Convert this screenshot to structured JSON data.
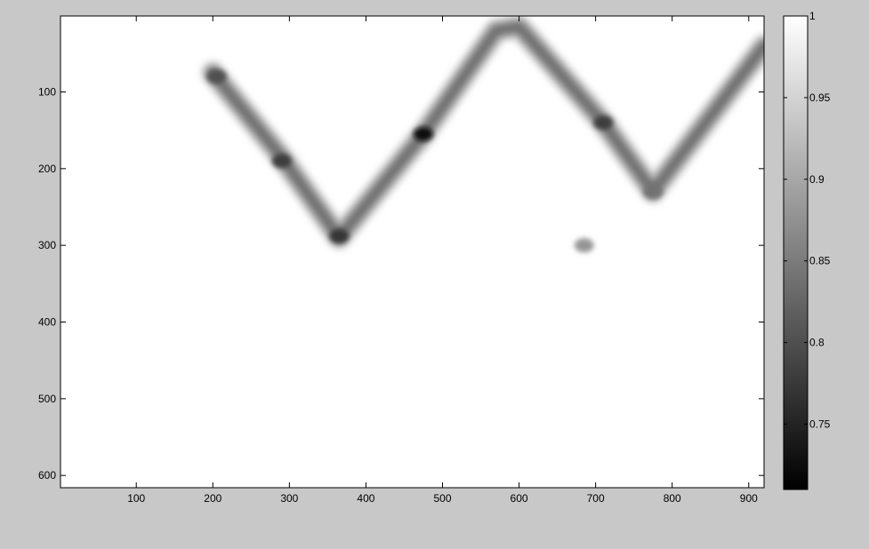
{
  "chart_data": {
    "type": "heatmap",
    "title": "",
    "xlabel": "",
    "ylabel": "",
    "xlim": [
      1,
      920
    ],
    "ylim": [
      616,
      1
    ],
    "x_ticks": [
      "100",
      "200",
      "300",
      "400",
      "500",
      "600",
      "700",
      "800",
      "900"
    ],
    "y_ticks": [
      "100",
      "200",
      "300",
      "400",
      "500",
      "600"
    ],
    "colormap": "gray",
    "colorbar": {
      "range": [
        0.71,
        1.0
      ],
      "ticks": [
        "0.75",
        "0.8",
        "0.85",
        "0.9",
        "0.95",
        "1"
      ]
    },
    "ridge_path": [
      {
        "x": 200,
        "y": 75
      },
      {
        "x": 290,
        "y": 185
      },
      {
        "x": 365,
        "y": 290
      },
      {
        "x": 475,
        "y": 155
      },
      {
        "x": 570,
        "y": 20
      },
      {
        "x": 600,
        "y": 15
      },
      {
        "x": 710,
        "y": 140
      },
      {
        "x": 775,
        "y": 230
      },
      {
        "x": 920,
        "y": 40
      }
    ],
    "dark_spots": [
      {
        "x": 205,
        "y": 80,
        "value": 0.8
      },
      {
        "x": 290,
        "y": 190,
        "value": 0.78
      },
      {
        "x": 365,
        "y": 288,
        "value": 0.77
      },
      {
        "x": 475,
        "y": 155,
        "value": 0.72
      },
      {
        "x": 710,
        "y": 140,
        "value": 0.78
      },
      {
        "x": 775,
        "y": 230,
        "value": 0.84
      },
      {
        "x": 685,
        "y": 300,
        "value": 0.88
      }
    ],
    "ridge_value": 0.84,
    "background_value": 1.0
  }
}
